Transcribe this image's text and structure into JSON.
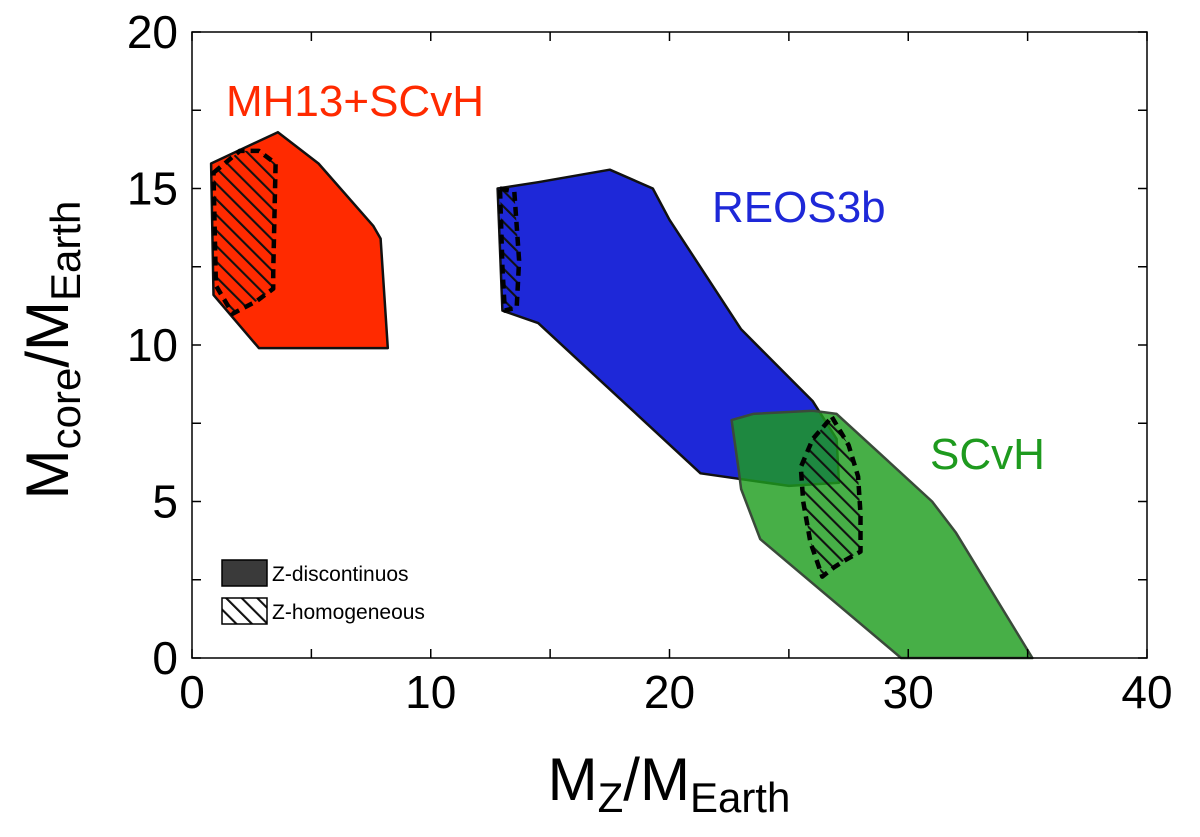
{
  "chart_data": {
    "type": "area",
    "xlabel": {
      "main": "M",
      "sub": "Z",
      "over": "/M",
      "sub2": "Earth"
    },
    "ylabel": {
      "main": "M",
      "sub": "core",
      "over": "/M",
      "sub2": "Earth"
    },
    "xlim": [
      0,
      40
    ],
    "ylim": [
      0,
      20
    ],
    "xticks": [
      0,
      10,
      20,
      30,
      40
    ],
    "yticks": [
      0,
      5,
      10,
      15,
      20
    ],
    "grid": false,
    "series": [
      {
        "name": "MH13+SCvH",
        "color": "#ff2a00",
        "fill_opacity": 1.0,
        "label_color": "#ff2a00",
        "region": [
          [
            0.8,
            15.8
          ],
          [
            3.6,
            16.8
          ],
          [
            5.3,
            15.8
          ],
          [
            7.6,
            13.8
          ],
          [
            7.9,
            13.4
          ],
          [
            8.2,
            9.9
          ],
          [
            2.8,
            9.9
          ],
          [
            0.9,
            11.6
          ]
        ],
        "homogeneous": [
          [
            0.9,
            15.5
          ],
          [
            2.0,
            16.2
          ],
          [
            2.8,
            16.2
          ],
          [
            3.5,
            15.8
          ],
          [
            3.4,
            12.3
          ],
          [
            3.4,
            11.8
          ],
          [
            2.7,
            11.4
          ],
          [
            1.7,
            11.0
          ],
          [
            1.0,
            11.9
          ]
        ]
      },
      {
        "name": "REOS3b",
        "color": "#1e28d8",
        "fill_opacity": 1.0,
        "label_color": "#1e28d8",
        "region": [
          [
            12.8,
            15.0
          ],
          [
            14.5,
            15.2
          ],
          [
            17.5,
            15.6
          ],
          [
            19.3,
            15.0
          ],
          [
            20.0,
            14.0
          ],
          [
            23.0,
            10.5
          ],
          [
            26.0,
            8.2
          ],
          [
            27.0,
            7.0
          ],
          [
            27.1,
            5.6
          ],
          [
            25.0,
            5.5
          ],
          [
            21.3,
            5.9
          ],
          [
            14.5,
            10.7
          ],
          [
            13.0,
            11.1
          ]
        ],
        "homogeneous": [
          [
            12.9,
            15.0
          ],
          [
            13.5,
            14.9
          ],
          [
            13.7,
            12.7
          ],
          [
            13.6,
            11.2
          ],
          [
            13.1,
            11.1
          ],
          [
            13.0,
            12.5
          ]
        ]
      },
      {
        "name": "SCvH",
        "color": "#1f9e1f",
        "fill_opacity": 0.82,
        "label_color": "#1e9a1e",
        "region": [
          [
            22.6,
            7.6
          ],
          [
            23.5,
            7.8
          ],
          [
            26.0,
            7.9
          ],
          [
            27.0,
            7.8
          ],
          [
            29.0,
            6.4
          ],
          [
            31.0,
            5.0
          ],
          [
            32.0,
            4.0
          ],
          [
            35.2,
            0.0
          ],
          [
            29.7,
            0.0
          ],
          [
            23.8,
            3.8
          ],
          [
            23.0,
            5.4
          ],
          [
            22.9,
            6.0
          ]
        ],
        "homogeneous": [
          [
            26.8,
            7.7
          ],
          [
            27.5,
            6.8
          ],
          [
            27.9,
            5.8
          ],
          [
            28.0,
            4.6
          ],
          [
            28.0,
            3.4
          ],
          [
            27.3,
            3.1
          ],
          [
            26.9,
            2.9
          ],
          [
            26.4,
            2.6
          ],
          [
            25.9,
            3.7
          ],
          [
            25.6,
            5.0
          ],
          [
            25.5,
            6.1
          ],
          [
            26.0,
            7.0
          ]
        ]
      }
    ],
    "legend": {
      "position": "bottom-left",
      "entries": [
        {
          "label": "Z-discontinuos",
          "style": "solid"
        },
        {
          "label": "Z-homogeneous",
          "style": "hatched"
        }
      ]
    }
  }
}
